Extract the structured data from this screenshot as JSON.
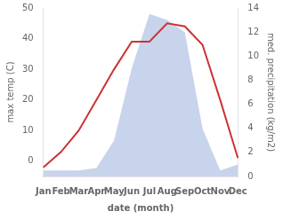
{
  "chart_data": {
    "type": "line",
    "xlabel": "date (month)",
    "ylabel": "max temp (C)",
    "y2label": "med. precipitation (kg/m2)",
    "categories": [
      "Jan",
      "Feb",
      "Mar",
      "Apr",
      "May",
      "Jun",
      "Jul",
      "Aug",
      "Sep",
      "Oct",
      "Nov",
      "Dec"
    ],
    "series": [
      {
        "type": "line",
        "color": "#cc3333",
        "values": [
          -2,
          3,
          10,
          20,
          30,
          39,
          39,
          45,
          44,
          38,
          20,
          1
        ]
      },
      {
        "type": "area",
        "color": "#c8d4ec",
        "axis": "y2",
        "values": [
          0.5,
          0.5,
          0.5,
          0.7,
          3.0,
          9.0,
          13.5,
          13.0,
          12.0,
          4.0,
          0.5,
          1.0
        ]
      }
    ],
    "ylim": [
      -5,
      50
    ],
    "yticks": [
      0,
      10,
      20,
      30,
      40,
      50
    ],
    "y2lim": [
      0,
      14
    ],
    "y2ticks": [
      0,
      2,
      4,
      6,
      8,
      10,
      12,
      14
    ],
    "grid": false
  }
}
